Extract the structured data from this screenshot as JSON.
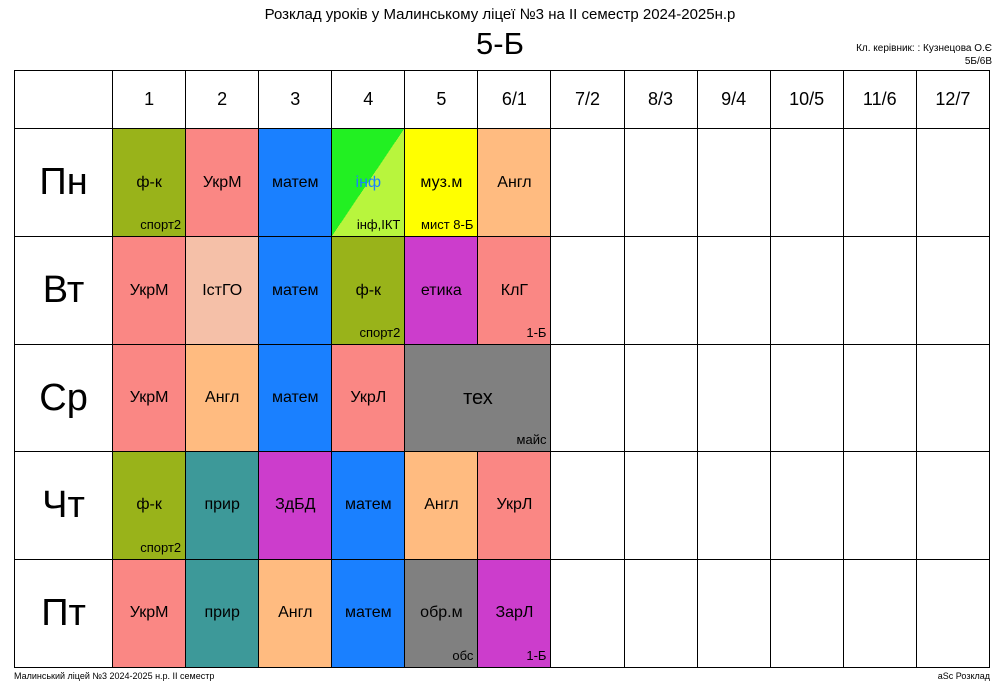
{
  "header": {
    "title": "Розклад уроків у Малинському ліцеї №3 на ІІ семестр 2024-2025н.р",
    "class_name": "5-Б",
    "teacher": "Кл. керівник: : Кузнецова О.Є",
    "teacher_code": "5Б/6В"
  },
  "footer": {
    "left": "Малинський ліцей №3  2024-2025 н.р. ІІ семестр",
    "right": "aSc Розклад"
  },
  "periods": [
    "1",
    "2",
    "3",
    "4",
    "5",
    "6/1",
    "7/2",
    "8/3",
    "9/4",
    "10/5",
    "11/6",
    "12/7"
  ],
  "days": [
    "Пн",
    "Вт",
    "Ср",
    "Чт",
    "Пт"
  ],
  "colors": {
    "olive": "#99b31a",
    "salmon": "#fa8784",
    "blue": "#1a80ff",
    "green": "#22f022",
    "lightgreen": "#b8f53d",
    "yellow": "#ffff00",
    "peach": "#ffbb80",
    "lightpeach": "#f5c0a8",
    "magenta": "#cc3dcc",
    "gray": "#808080",
    "teal": "#3d9999"
  },
  "schedule": {
    "mon": {
      "p1": {
        "subject": "ф-к",
        "room": "спорт2"
      },
      "p2": {
        "subject": "УкрМ",
        "room": ""
      },
      "p3": {
        "subject": "матем",
        "room": ""
      },
      "p4": {
        "subject": "інф",
        "room": "інф,ІКТ"
      },
      "p5": {
        "subject": "муз.м",
        "room": "мист 8-Б"
      },
      "p6": {
        "subject": "Англ",
        "room": ""
      }
    },
    "tue": {
      "p1": {
        "subject": "УкрМ",
        "room": ""
      },
      "p2": {
        "subject": "ІстГО",
        "room": ""
      },
      "p3": {
        "subject": "матем",
        "room": ""
      },
      "p4": {
        "subject": "ф-к",
        "room": "спорт2"
      },
      "p5": {
        "subject": "етика",
        "room": ""
      },
      "p6": {
        "subject": "КлГ",
        "room": "1-Б"
      }
    },
    "wed": {
      "p1": {
        "subject": "УкрМ",
        "room": ""
      },
      "p2": {
        "subject": "Англ",
        "room": ""
      },
      "p3": {
        "subject": "матем",
        "room": ""
      },
      "p4": {
        "subject": "УкрЛ",
        "room": ""
      },
      "p5": {
        "subject": "тех",
        "room": "майс"
      }
    },
    "thu": {
      "p1": {
        "subject": "ф-к",
        "room": "спорт2"
      },
      "p2": {
        "subject": "прир",
        "room": ""
      },
      "p3": {
        "subject": "ЗдБД",
        "room": ""
      },
      "p4": {
        "subject": "матем",
        "room": ""
      },
      "p5": {
        "subject": "Англ",
        "room": ""
      },
      "p6": {
        "subject": "УкрЛ",
        "room": ""
      }
    },
    "fri": {
      "p1": {
        "subject": "УкрМ",
        "room": ""
      },
      "p2": {
        "subject": "прир",
        "room": ""
      },
      "p3": {
        "subject": "Англ",
        "room": ""
      },
      "p4": {
        "subject": "матем",
        "room": ""
      },
      "p5": {
        "subject": "обр.м",
        "room": "обс"
      },
      "p6": {
        "subject": "ЗарЛ",
        "room": "1-Б"
      }
    }
  }
}
